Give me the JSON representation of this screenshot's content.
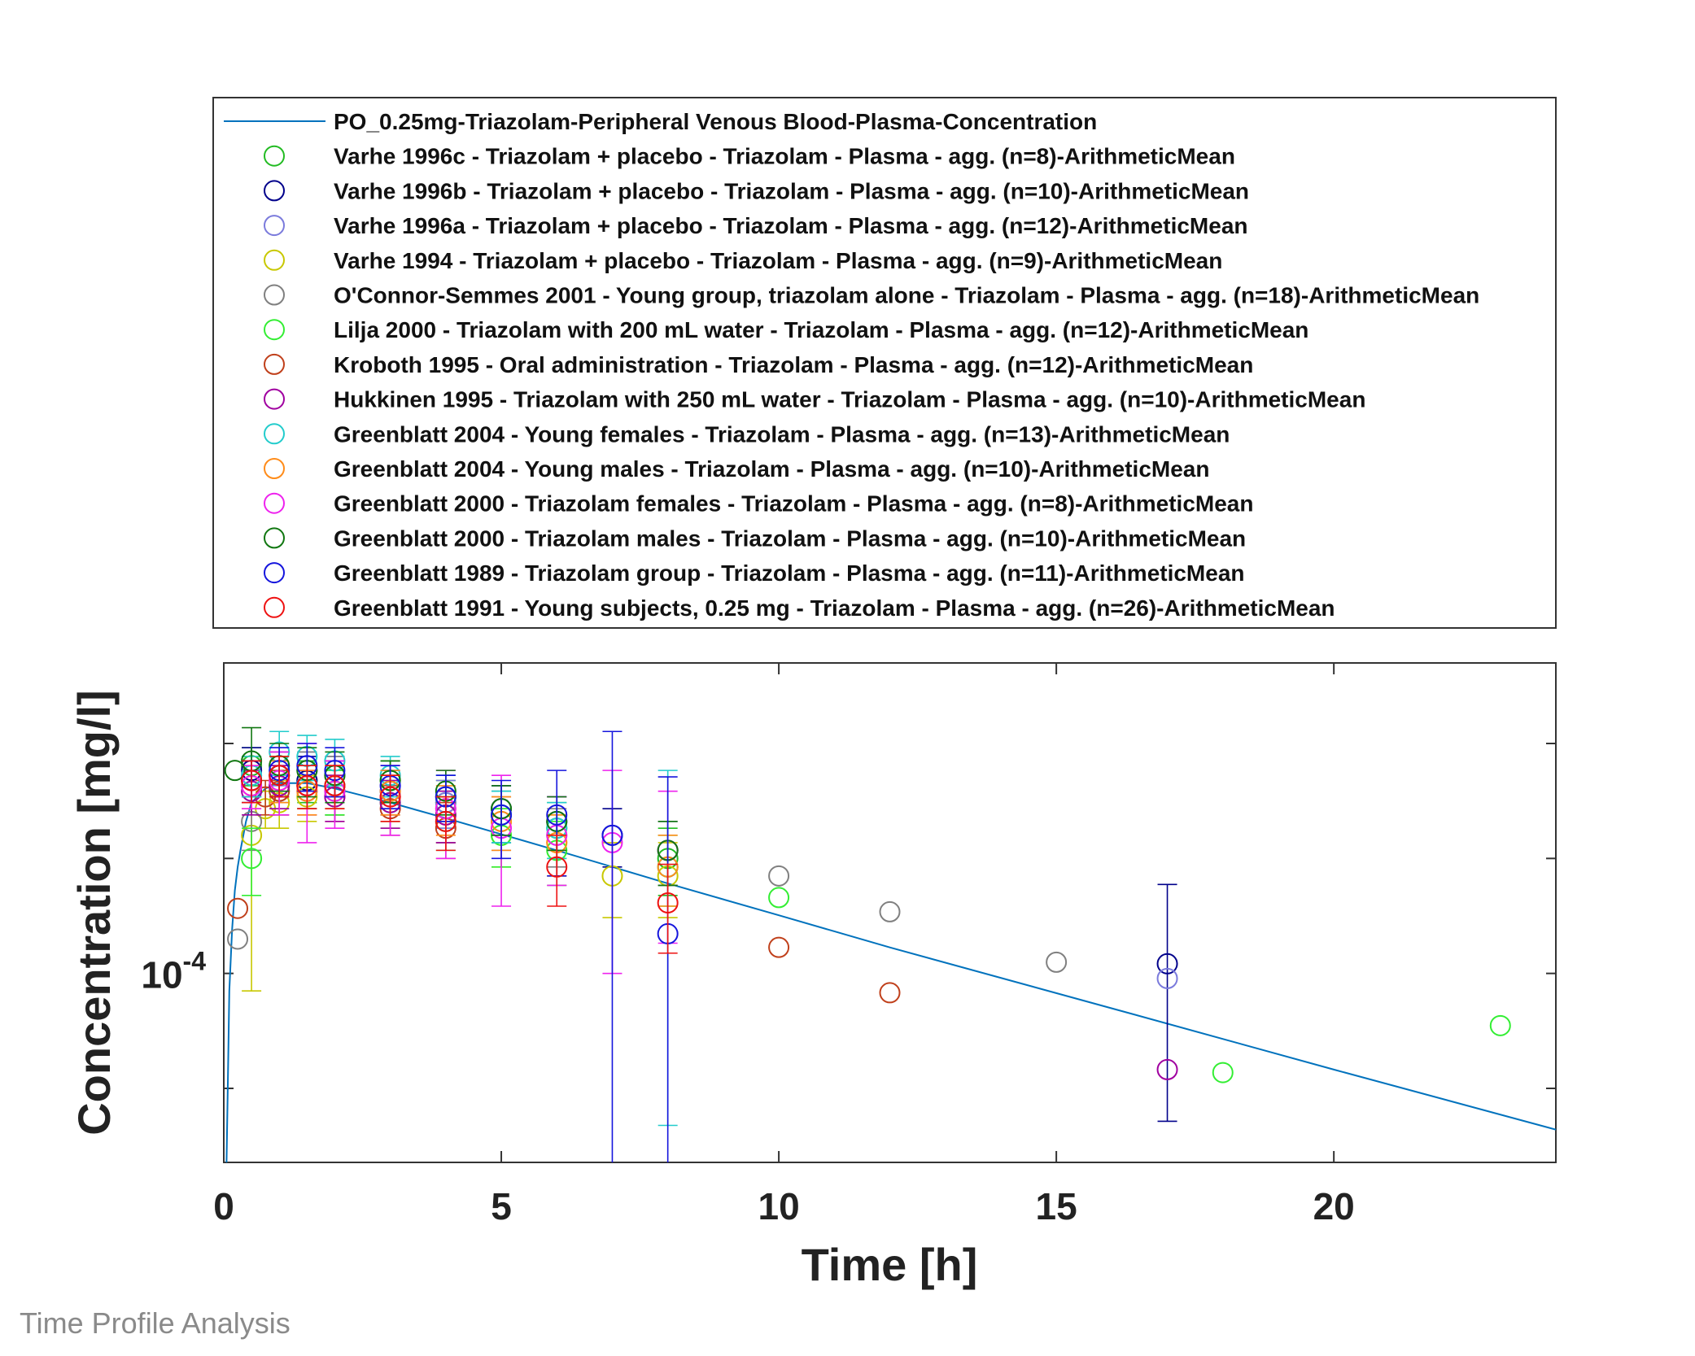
{
  "footer_text": "Time Profile Analysis",
  "chart_data": {
    "type": "scatter",
    "title": "",
    "xlabel": "Time [h]",
    "ylabel": "Concentration [mg/l]",
    "xlim": [
      0,
      24
    ],
    "ylim": [
      3.2e-05,
      0.00065
    ],
    "yscale": "log",
    "xticks": [
      0,
      5,
      10,
      15,
      20
    ],
    "yticks": [
      {
        "value": 0.0001,
        "base": "10",
        "exp": "-4"
      }
    ],
    "grid": false,
    "legend_position": "top",
    "simulation": {
      "name": "PO_0.25mg-Triazolam-Peripheral Venous Blood-Plasma-Concentration",
      "color": "#0072bd",
      "x": [
        0.05,
        0.08,
        0.1,
        0.15,
        0.2,
        0.25,
        0.3,
        0.4,
        0.5,
        0.75,
        1,
        1.5,
        2,
        3,
        4,
        6,
        8,
        10,
        12,
        16,
        20,
        24
      ],
      "y": [
        3.2e-05,
        6e-05,
        9e-05,
        0.00013,
        0.000165,
        0.00019,
        0.00021,
        0.00025,
        0.00028,
        0.000305,
        0.000315,
        0.000315,
        0.000305,
        0.00028,
        0.000255,
        0.00021,
        0.000172,
        0.000142,
        0.000117,
        8.1e-05,
        5.6e-05,
        3.9e-05
      ]
    },
    "series": [
      {
        "name": "Varhe 1996c - Triazolam + placebo - Triazolam - Plasma - agg. (n=8)-ArithmeticMean",
        "color": "#22bb22",
        "points": [
          [
            0.5,
            0.00035,
            4e-05
          ],
          [
            1,
            0.00033,
            4e-05
          ],
          [
            1.5,
            0.00032,
            4e-05
          ],
          [
            2,
            0.00031,
            4e-05
          ],
          [
            3,
            0.00032,
            4e-05
          ],
          [
            4,
            0.00028,
            4e-05
          ],
          [
            5,
            0.00026,
            4e-05
          ],
          [
            6,
            0.00024,
            4e-05
          ],
          [
            8,
            0.0002,
            4e-05
          ]
        ]
      },
      {
        "name": "Varhe 1996b - Triazolam + placebo - Triazolam - Plasma - agg. (n=10)-ArithmeticMean",
        "color": "#00008b",
        "points": [
          [
            0.5,
            0.00034,
            5e-05
          ],
          [
            1,
            0.00033,
            5e-05
          ],
          [
            1.5,
            0.00032,
            5e-05
          ],
          [
            2,
            0.00031,
            5e-05
          ],
          [
            3,
            0.0003,
            4e-05
          ],
          [
            4,
            0.00029,
            4e-05
          ],
          [
            5,
            0.00027,
            4e-05
          ],
          [
            6,
            0.00025,
            4e-05
          ],
          [
            7,
            0.00023,
            4e-05
          ],
          [
            17,
            0.000106,
            6.5e-05
          ]
        ]
      },
      {
        "name": "Varhe 1996a - Triazolam + placebo - Triazolam - Plasma - agg. (n=12)-ArithmeticMean",
        "color": "#7b7bdc",
        "points": [
          [
            0.5,
            0.00033,
            4e-05
          ],
          [
            1,
            0.00035,
            4e-05
          ],
          [
            1.5,
            0.00034,
            4e-05
          ],
          [
            2,
            0.00033,
            4e-05
          ],
          [
            3,
            0.00031,
            4e-05
          ],
          [
            4,
            0.00028,
            4e-05
          ],
          [
            5,
            0.00026,
            4e-05
          ],
          [
            6,
            0.00025,
            4e-05
          ],
          [
            8,
            0.00021,
            4e-05
          ],
          [
            17,
            9.7e-05,
            0.0
          ]
        ]
      },
      {
        "name": "Varhe 1994 - Triazolam + placebo - Triazolam - Plasma - agg. (n=9)-ArithmeticMean",
        "color": "#c8c800",
        "points": [
          [
            0.5,
            0.00023,
            0.00014
          ],
          [
            0.75,
            0.00027,
            3e-05
          ],
          [
            1,
            0.00028,
            4e-05
          ],
          [
            1.5,
            0.00029,
            4e-05
          ],
          [
            2,
            0.0003,
            4e-05
          ],
          [
            3,
            0.00029,
            4e-05
          ],
          [
            4,
            0.00026,
            4e-05
          ],
          [
            5,
            0.00023,
            4e-05
          ],
          [
            6,
            0.00022,
            4e-05
          ],
          [
            7,
            0.00018,
            4e-05
          ],
          [
            8,
            0.00018,
            4e-05
          ]
        ]
      },
      {
        "name": "O'Connor-Semmes 2001 - Young group, triazolam alone - Triazolam - Plasma - agg. (n=18)-ArithmeticMean",
        "color": "#808080",
        "points": [
          [
            0.25,
            0.000123,
            0.0
          ],
          [
            0.5,
            0.00025,
            4e-05
          ],
          [
            1,
            0.00031,
            4e-05
          ],
          [
            1.5,
            0.00034,
            4e-05
          ],
          [
            2,
            0.00033,
            4e-05
          ],
          [
            3,
            0.00029,
            4e-05
          ],
          [
            4,
            0.00026,
            4e-05
          ],
          [
            5,
            0.00025,
            4e-05
          ],
          [
            6,
            0.00023,
            4e-05
          ],
          [
            8,
            0.00021,
            4e-05
          ],
          [
            10,
            0.00018,
            0.0
          ],
          [
            12,
            0.000145,
            0.0
          ],
          [
            15,
            0.000107,
            0.0
          ]
        ]
      },
      {
        "name": "Lilja 2000 - Triazolam with 200 mL water - Triazolam - Plasma - agg. (n=12)-ArithmeticMean",
        "color": "#33ee33",
        "points": [
          [
            0.5,
            0.0002,
            4e-05
          ],
          [
            1,
            0.0003,
            4e-05
          ],
          [
            1.5,
            0.00031,
            4e-05
          ],
          [
            2,
            0.0003,
            4e-05
          ],
          [
            3,
            0.00028,
            4e-05
          ],
          [
            4,
            0.00025,
            4e-05
          ],
          [
            5,
            0.00023,
            4e-05
          ],
          [
            6,
            0.00021,
            4e-05
          ],
          [
            8,
            0.00019,
            4e-05
          ],
          [
            10,
            0.000158,
            0.0
          ],
          [
            18,
            5.5e-05,
            0.0
          ],
          [
            23,
            7.3e-05,
            0.0
          ]
        ]
      },
      {
        "name": "Kroboth 1995 - Oral administration - Triazolam - Plasma - agg. (n=12)-ArithmeticMean",
        "color": "#c0401b",
        "points": [
          [
            0.25,
            0.000148,
            0.0
          ],
          [
            0.75,
            0.00029,
            3e-05
          ],
          [
            1,
            0.0003,
            4e-05
          ],
          [
            1.5,
            0.00031,
            4e-05
          ],
          [
            2,
            0.00029,
            4e-05
          ],
          [
            3,
            0.00027,
            4e-05
          ],
          [
            4,
            0.00024,
            4e-05
          ],
          [
            10,
            0.000117,
            0.0
          ],
          [
            12,
            8.9e-05,
            0.0
          ]
        ]
      },
      {
        "name": "Hukkinen 1995 - Triazolam with 250 mL water - Triazolam - Plasma - agg. (n=10)-ArithmeticMean",
        "color": "#a000a0",
        "points": [
          [
            0.5,
            0.0003,
            4e-05
          ],
          [
            1,
            0.00031,
            4e-05
          ],
          [
            1.5,
            0.0003,
            4e-05
          ],
          [
            2,
            0.00029,
            4e-05
          ],
          [
            3,
            0.00028,
            4e-05
          ],
          [
            4,
            0.00026,
            4e-05
          ],
          [
            17,
            5.6e-05,
            0.0
          ]
        ]
      },
      {
        "name": "Greenblatt 2004 - Young females - Triazolam - Plasma - agg. (n=13)-ArithmeticMean",
        "color": "#22cccc",
        "points": [
          [
            0.5,
            0.00033,
            4e-05
          ],
          [
            1,
            0.00038,
            5e-05
          ],
          [
            1.5,
            0.00037,
            5e-05
          ],
          [
            2,
            0.00036,
            5e-05
          ],
          [
            3,
            0.00033,
            4e-05
          ],
          [
            4,
            0.00029,
            4e-05
          ],
          [
            5,
            0.00026,
            4e-05
          ],
          [
            6,
            0.00024,
            4e-05
          ],
          [
            8,
            0.00019,
            0.00015
          ]
        ]
      },
      {
        "name": "Greenblatt 2004 - Young males - Triazolam - Plasma - agg. (n=10)-ArithmeticMean",
        "color": "#ff8c1a",
        "points": [
          [
            0.5,
            0.00031,
            4e-05
          ],
          [
            1,
            0.00032,
            4e-05
          ],
          [
            1.5,
            0.0003,
            4e-05
          ],
          [
            2,
            0.00031,
            4e-05
          ],
          [
            3,
            0.0003,
            4e-05
          ],
          [
            4,
            0.00027,
            4e-05
          ],
          [
            5,
            0.00025,
            4e-05
          ],
          [
            6,
            0.00022,
            4e-05
          ],
          [
            8,
            0.00019,
            4e-05
          ]
        ]
      },
      {
        "name": "Greenblatt 2000 - Triazolam females - Triazolam - Plasma - agg. (n=8)-ArithmeticMean",
        "color": "#ee22ee",
        "points": [
          [
            0.5,
            0.00031,
            4e-05
          ],
          [
            1,
            0.00032,
            6e-05
          ],
          [
            1.5,
            0.00031,
            9e-05
          ],
          [
            2,
            0.0003,
            6e-05
          ],
          [
            3,
            0.00029,
            6e-05
          ],
          [
            4,
            0.00027,
            7e-05
          ],
          [
            5,
            0.00024,
            9e-05
          ],
          [
            6,
            0.00023,
            6e-05
          ],
          [
            7,
            0.00022,
            0.00012
          ],
          [
            8,
            0.00021,
            9e-05
          ]
        ]
      },
      {
        "name": "Greenblatt 2000 - Triazolam males - Triazolam - Plasma - agg. (n=10)-ArithmeticMean",
        "color": "#117711",
        "points": [
          [
            0.2,
            0.00034,
            0.0
          ],
          [
            0.5,
            0.00036,
            8e-05
          ],
          [
            1,
            0.00035,
            5e-05
          ],
          [
            1.5,
            0.00034,
            5e-05
          ],
          [
            2,
            0.00033,
            5e-05
          ],
          [
            3,
            0.00032,
            4e-05
          ],
          [
            4,
            0.0003,
            4e-05
          ],
          [
            5,
            0.00027,
            4e-05
          ],
          [
            6,
            0.00025,
            4e-05
          ],
          [
            8,
            0.00021,
            4e-05
          ]
        ]
      },
      {
        "name": "Greenblatt 1989 - Triazolam group - Triazolam - Plasma - agg. (n=11)-ArithmeticMean",
        "color": "#1515dd",
        "points": [
          [
            0.5,
            0.00032,
            4e-05
          ],
          [
            1,
            0.00034,
            5e-05
          ],
          [
            1.5,
            0.00035,
            5e-05
          ],
          [
            2,
            0.00034,
            5e-05
          ],
          [
            3,
            0.00031,
            4e-05
          ],
          [
            4,
            0.00029,
            4e-05
          ],
          [
            5,
            0.00026,
            6e-05
          ],
          [
            6,
            0.00026,
            8e-05
          ],
          [
            7,
            0.00023,
            0.0002
          ],
          [
            8,
            0.000127,
            0.0002
          ]
        ]
      },
      {
        "name": "Greenblatt 1991 - Young subjects, 0.25 mg - Triazolam - Plasma - agg. (n=26)-ArithmeticMean",
        "color": "#ee1111",
        "points": [
          [
            0.5,
            0.00032,
            4e-05
          ],
          [
            1,
            0.00033,
            4e-05
          ],
          [
            1.5,
            0.00031,
            4e-05
          ],
          [
            2,
            0.00031,
            4e-05
          ],
          [
            3,
            0.00029,
            4e-05
          ],
          [
            4,
            0.00025,
            4e-05
          ],
          [
            6,
            0.00019,
            4e-05
          ],
          [
            8,
            0.000153,
            4e-05
          ]
        ]
      }
    ]
  }
}
